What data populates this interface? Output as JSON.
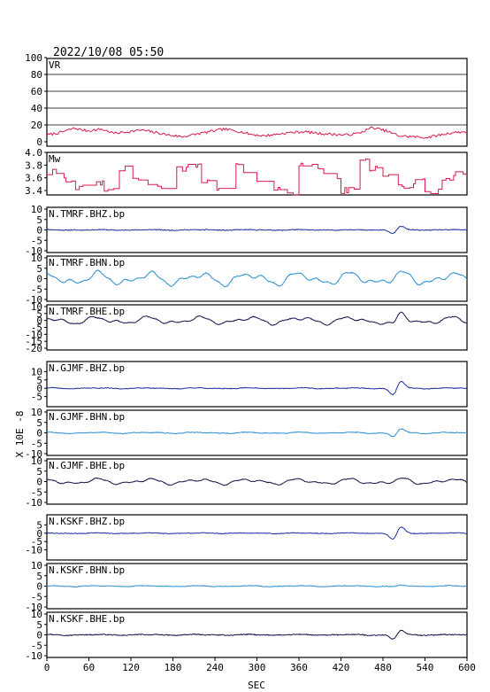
{
  "header": {
    "timestamp": "2022/10/08 05:50"
  },
  "axis": {
    "xlabel": "SEC",
    "ylabel": "X 10E -8"
  },
  "chart_data": {
    "type": "line",
    "x_ticks": [
      0,
      60,
      120,
      180,
      240,
      300,
      360,
      420,
      480,
      540,
      600
    ],
    "xlim": [
      0,
      600
    ],
    "panels": [
      {
        "key": "vr",
        "label": "VR",
        "color": "#d81b4a",
        "ylim": [
          0,
          100
        ],
        "y_ticks": [
          0,
          20,
          40,
          60,
          80,
          100
        ],
        "grid": true,
        "kind": "vr",
        "series": {
          "values": [
            8,
            11,
            16,
            13,
            15,
            10,
            12,
            14,
            11,
            8,
            6,
            9,
            12,
            15,
            13,
            9,
            7,
            9,
            11,
            12,
            10,
            9,
            8,
            10,
            17,
            13,
            7,
            6,
            5,
            8,
            11,
            12
          ]
        }
      },
      {
        "key": "mw",
        "label": "Mw",
        "color": "#d81b4a",
        "ylim": [
          3.3,
          4.0
        ],
        "y_ticks": [
          3.4,
          3.6,
          3.8,
          4.0
        ],
        "kind": "mw",
        "series": {
          "values": [
            3.7,
            3.55,
            3.45,
            3.5,
            3.4,
            3.75,
            3.6,
            3.45,
            3.4,
            3.75,
            3.8,
            3.55,
            3.4,
            3.85,
            3.7,
            3.5,
            3.45,
            3.35,
            3.8,
            3.7,
            3.6,
            3.4,
            3.85,
            3.75,
            3.6,
            3.45,
            3.55,
            3.4,
            3.6,
            3.65,
            3.7
          ]
        }
      },
      {
        "key": "tmrf_bhz",
        "label": "N.TMRF.BHZ.bp",
        "color": "#1c2fa0",
        "ylim": [
          -10,
          10
        ],
        "y_ticks": [
          -10,
          -5,
          0,
          5,
          10
        ],
        "seed": 11,
        "noise": 0.4,
        "slow": 0.2,
        "event": 3.2,
        "eventWidth": 10
      },
      {
        "key": "tmrf_bhn",
        "label": "N.TMRF.BHN.bp",
        "color": "#2c8fd0",
        "ylim": [
          -10,
          10
        ],
        "y_ticks": [
          -10,
          -5,
          0,
          5,
          10
        ],
        "seed": 23,
        "noise": 0.4,
        "slow": 4.0,
        "event": 1.0,
        "eventWidth": 12
      },
      {
        "key": "tmrf_bhe",
        "label": "N.TMRF.BHE.bp",
        "color": "#14144a",
        "ylim": [
          -20,
          10
        ],
        "y_ticks": [
          -20,
          -15,
          -10,
          -5,
          0,
          5,
          10
        ],
        "seed": 37,
        "noise": 0.5,
        "slow": 3.5,
        "event": 6.5,
        "eventWidth": 10
      },
      {
        "key": "gjmf_bhz",
        "label": "N.GJMF.BHZ.bp",
        "color": "#1c2fa0",
        "ylim": [
          -10,
          15
        ],
        "y_ticks": [
          -5,
          0,
          5,
          10
        ],
        "seed": 41,
        "noise": 0.4,
        "slow": 0.4,
        "event": 8.0,
        "eventWidth": 10
      },
      {
        "key": "gjmf_bhn",
        "label": "N.GJMF.BHN.bp",
        "color": "#2c8fd0",
        "ylim": [
          -10,
          10
        ],
        "y_ticks": [
          -10,
          -5,
          0,
          5,
          10
        ],
        "seed": 53,
        "noise": 0.3,
        "slow": 0.4,
        "event": 3.5,
        "eventWidth": 10
      },
      {
        "key": "gjmf_bhe",
        "label": "N.GJMF.BHE.bp",
        "color": "#14144a",
        "ylim": [
          -10,
          10
        ],
        "y_ticks": [
          -10,
          -5,
          0,
          5,
          10
        ],
        "seed": 67,
        "noise": 0.3,
        "slow": 1.8,
        "event": 0.7,
        "eventWidth": 12
      },
      {
        "key": "kskf_bhz",
        "label": "N.KSKF.BHZ.bp",
        "color": "#1c2fa0",
        "ylim": [
          -15,
          10
        ],
        "y_ticks": [
          -10,
          -5,
          0,
          5
        ],
        "seed": 79,
        "noise": 0.4,
        "slow": 0.3,
        "event": 7.0,
        "eventWidth": 10
      },
      {
        "key": "kskf_bhn",
        "label": "N.KSKF.BHN.bp",
        "color": "#2c8fd0",
        "ylim": [
          -10,
          10
        ],
        "y_ticks": [
          -10,
          -5,
          0,
          5,
          10
        ],
        "seed": 83,
        "noise": 0.3,
        "slow": 0.3,
        "event": 0.8,
        "eventWidth": 10
      },
      {
        "key": "kskf_bhe",
        "label": "N.KSKF.BHE.bp",
        "color": "#14144a",
        "ylim": [
          -10,
          10
        ],
        "y_ticks": [
          -10,
          -5,
          0,
          5,
          10
        ],
        "seed": 97,
        "noise": 0.4,
        "slow": 0.3,
        "event": 4.0,
        "eventWidth": 10
      }
    ]
  }
}
